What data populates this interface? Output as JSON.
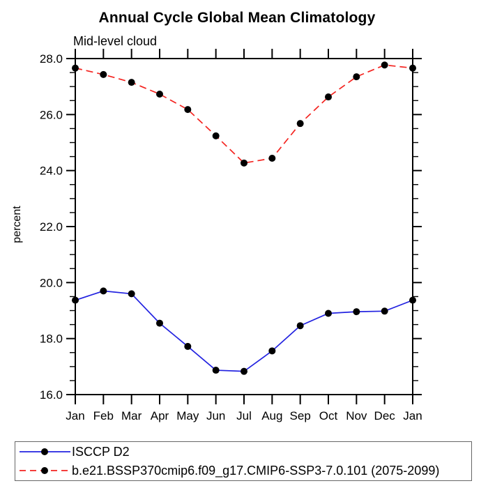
{
  "chart_data": {
    "type": "line",
    "title": "Annual Cycle Global Mean Climatology",
    "subtitle": "Mid-level cloud",
    "ylabel": "percent",
    "xlabel": "",
    "categories": [
      "Jan",
      "Feb",
      "Mar",
      "Apr",
      "May",
      "Jun",
      "Jul",
      "Aug",
      "Sep",
      "Oct",
      "Nov",
      "Dec",
      "Jan"
    ],
    "ylim": [
      16.0,
      28.0
    ],
    "yticks": [
      16.0,
      18.0,
      20.0,
      22.0,
      24.0,
      26.0,
      28.0
    ],
    "ytick_labels": [
      "16.0",
      "18.0",
      "20.0",
      "22.0",
      "24.0",
      "26.0",
      "28.0"
    ],
    "yminor_step": 0.5,
    "grid": false,
    "legend_position": "bottom-left-box",
    "frame_color": "#000000",
    "marker_color": "#000000",
    "series": [
      {
        "name": "ISCCP D2",
        "color": "#2222e0",
        "style": "solid",
        "marker": "filled-circle",
        "values": [
          19.37,
          19.7,
          19.6,
          18.55,
          17.72,
          16.87,
          16.83,
          17.56,
          18.46,
          18.9,
          18.96,
          18.98,
          19.37
        ]
      },
      {
        "name": "b.e21.BSSP370cmip6.f09_g17.CMIP6-SSP3-7.0.101 (2075-2099)",
        "color": "#f42420",
        "style": "dashed",
        "marker": "filled-circle",
        "values": [
          27.66,
          27.43,
          27.15,
          26.73,
          26.18,
          25.24,
          24.27,
          24.44,
          25.68,
          26.63,
          27.35,
          27.77,
          27.66
        ]
      }
    ]
  }
}
